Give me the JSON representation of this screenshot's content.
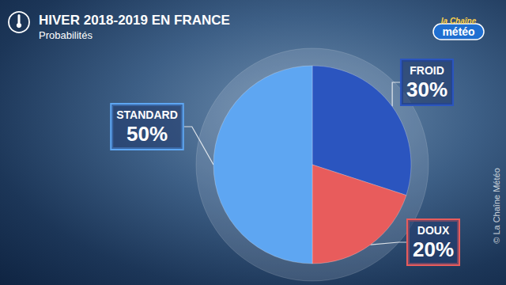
{
  "chart_data": {
    "type": "pie",
    "title": "HIVER 2018-2019 EN FRANCE",
    "subtitle": "Probabilités",
    "categories": [
      "FROID",
      "DOUX",
      "STANDARD"
    ],
    "values": [
      30,
      20,
      50
    ],
    "value_labels": [
      "30%",
      "20%",
      "50%"
    ],
    "colors": [
      "#2b55bf",
      "#e85c5c",
      "#5ea6f2"
    ],
    "data_labels": true,
    "annotations": [
      "la Chaîne",
      "météo",
      "© La Chaîne Météo"
    ]
  }
}
